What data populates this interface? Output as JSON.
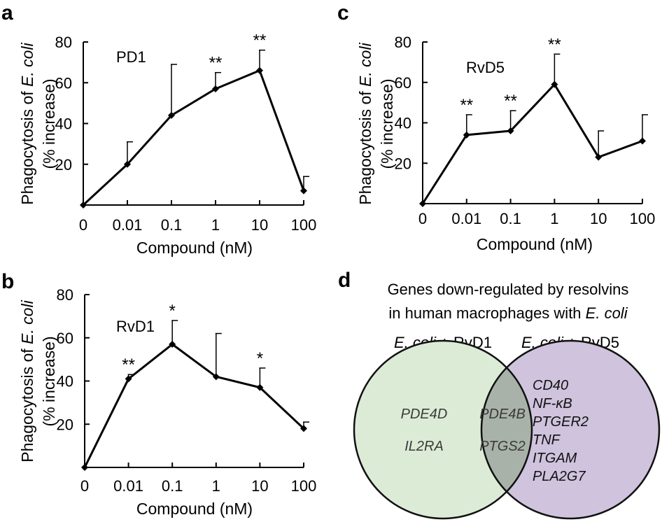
{
  "chart_data": [
    {
      "panel": "a",
      "type": "line",
      "series_label": "PD1",
      "x": [
        "0",
        "0.01",
        "0.1",
        "1",
        "10",
        "100"
      ],
      "values": [
        0,
        20,
        44,
        57,
        66,
        7
      ],
      "error": [
        0,
        11,
        25,
        8,
        10,
        7
      ],
      "significance": [
        "",
        "",
        "",
        "**",
        "**",
        ""
      ],
      "ylabel_part1": "Phagocytosis of",
      "ylabel_ital": "E. coli",
      "ylabel2": "(% increase)",
      "xlabel": "Compound (nM)",
      "ylim": [
        0,
        80
      ],
      "yticks": [
        "20",
        "40",
        "60",
        "80"
      ],
      "grid": false
    },
    {
      "panel": "b",
      "type": "line",
      "series_label": "RvD1",
      "x": [
        "0",
        "0.01",
        "0.1",
        "1",
        "10",
        "100"
      ],
      "values": [
        0,
        41,
        57,
        42,
        37,
        18
      ],
      "error": [
        0,
        2,
        11,
        20,
        9,
        3
      ],
      "significance": [
        "",
        "**",
        "*",
        "",
        "*",
        ""
      ],
      "ylabel_part1": "Phagocytosis of",
      "ylabel_ital": "E. coli",
      "ylabel2": "(% increase)",
      "xlabel": "Compound (nM)",
      "ylim": [
        0,
        80
      ],
      "yticks": [
        "20",
        "40",
        "60",
        "80"
      ],
      "grid": false
    },
    {
      "panel": "c",
      "type": "line",
      "series_label": "RvD5",
      "x": [
        "0",
        "0.01",
        "0.1",
        "1",
        "10",
        "100"
      ],
      "values": [
        0,
        34,
        36,
        59,
        23,
        31
      ],
      "error": [
        0,
        10,
        10,
        15,
        13,
        13
      ],
      "significance": [
        "",
        "**",
        "**",
        "**",
        "",
        ""
      ],
      "ylabel_part1": "Phagocytosis of",
      "ylabel_ital": "E. coli",
      "ylabel2": "(% increase)",
      "xlabel": "Compound (nM)",
      "ylim": [
        0,
        80
      ],
      "yticks": [
        "20",
        "40",
        "60",
        "80"
      ],
      "grid": false
    }
  ],
  "venn": {
    "panel": "d",
    "title_line1": "Genes down-regulated by resolvins",
    "title_line2_prefix": "in human macrophages with",
    "title_line2_ital": "E. coli",
    "left_label_ital": "E. coli",
    "left_label_rest": " + RvD1",
    "right_label_ital": "E. coli",
    "right_label_rest": " + RvD5",
    "left_only": [
      "PDE4D",
      "IL2RA"
    ],
    "overlap": [
      "PDE4B",
      "PTGS2"
    ],
    "right_only": [
      "CD40",
      "NF-κB",
      "PTGER2",
      "TNF",
      "ITGAM",
      "PLA2G7"
    ],
    "colors": {
      "left": "#dcebd6",
      "right": "#cfc3dd",
      "overlap": "#a9b2a8"
    }
  }
}
